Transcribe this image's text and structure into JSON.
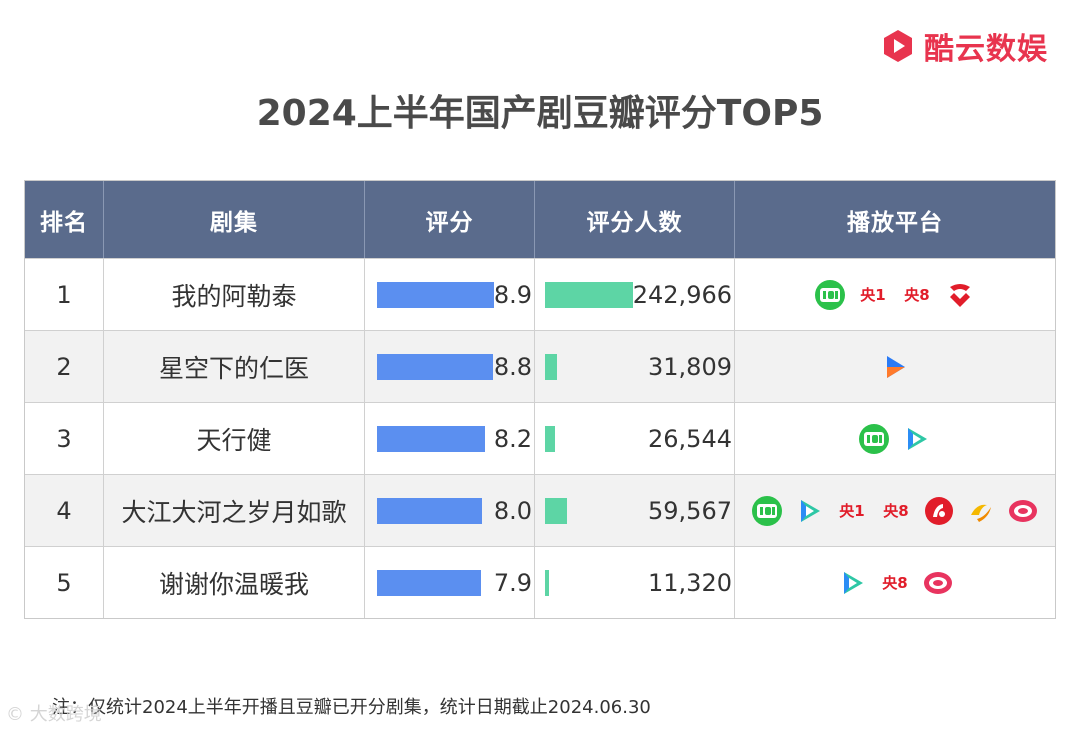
{
  "brand": {
    "name": "酷云数娱"
  },
  "watermark": {
    "text": "© 大数跨境"
  },
  "chart_data": {
    "type": "table",
    "title": "2024上半年国产剧豆瓣评分TOP5",
    "columns": [
      "排名",
      "剧集",
      "评分",
      "评分人数",
      "播放平台"
    ],
    "rows": [
      {
        "rank": "1",
        "name": "我的阿勒泰",
        "score": 8.9,
        "score_label": "8.9",
        "count": 242966,
        "count_label": "242,966",
        "platforms": [
          "iqiyi",
          "cctv1",
          "cctv8",
          "jiangsu-tv"
        ]
      },
      {
        "rank": "2",
        "name": "星空下的仁医",
        "score": 8.8,
        "score_label": "8.8",
        "count": 31809,
        "count_label": "31,809",
        "platforms": [
          "youku"
        ]
      },
      {
        "rank": "3",
        "name": "天行健",
        "score": 8.2,
        "score_label": "8.2",
        "count": 26544,
        "count_label": "26,544",
        "platforms": [
          "iqiyi",
          "tencent-video"
        ]
      },
      {
        "rank": "4",
        "name": "大江大河之岁月如歌",
        "score": 8.0,
        "score_label": "8.0",
        "count": 59567,
        "count_label": "59,567",
        "platforms": [
          "iqiyi",
          "tencent-video",
          "cctv1",
          "cctv8",
          "anhui-tv",
          "zhejiang-tv",
          "dragon-tv"
        ]
      },
      {
        "rank": "5",
        "name": "谢谢你温暖我",
        "score": 7.9,
        "score_label": "7.9",
        "count": 11320,
        "count_label": "11,320",
        "platforms": [
          "tencent-video",
          "cctv8",
          "dragon-tv"
        ]
      }
    ],
    "score_bar_color": "#5b8ff0",
    "count_bar_color": "#5dd5a5",
    "header_color": "#5a6b8c"
  },
  "footnote": "注：仅统计2024上半年开播且豆瓣已开分剧集，统计日期截止2024.06.30",
  "platform_labels": {
    "cctv1": "央1",
    "cctv8": "央8"
  }
}
